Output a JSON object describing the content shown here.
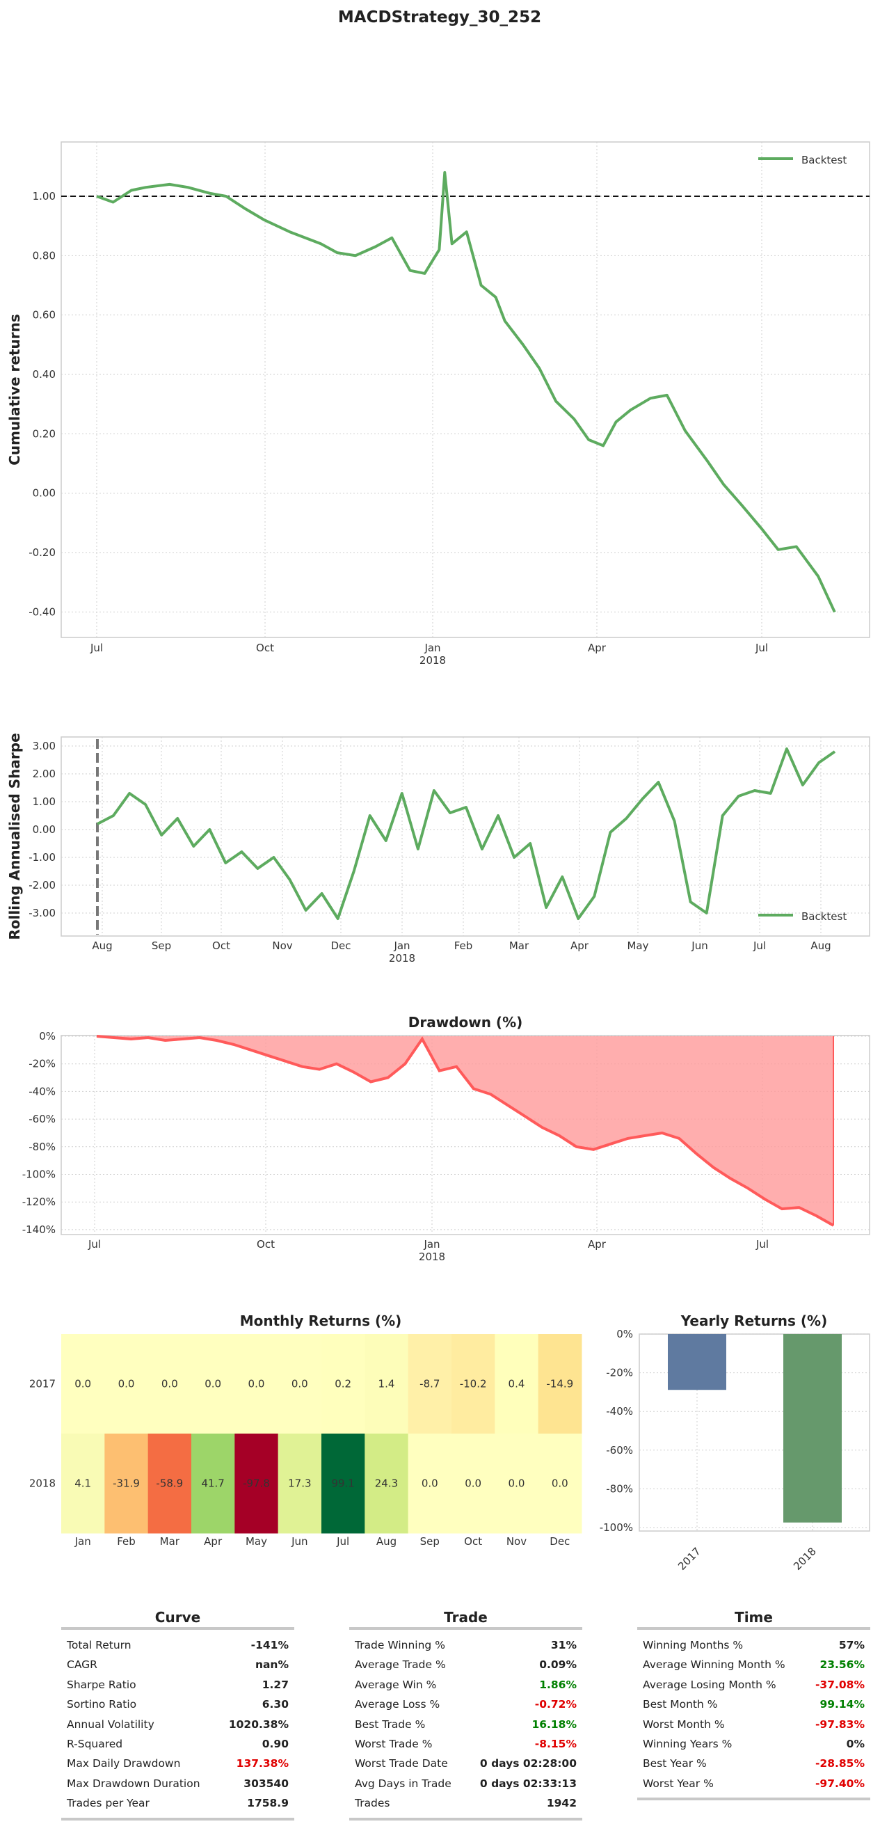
{
  "title": "MACDStrategy_30_252",
  "colors": {
    "line": "#5dab5f",
    "drawdown_fill": "#ff9a9a",
    "drawdown_line": "#ff5a5a",
    "bar2017": "#5f7aa0",
    "bar2018": "#66996c"
  },
  "chart_data": [
    {
      "type": "line",
      "name": "cumulative_returns",
      "ylabel": "Cumulative returns",
      "yticks": [
        "1.00",
        "0.80",
        "0.60",
        "0.40",
        "0.20",
        "0.00",
        "-0.20",
        "-0.40"
      ],
      "xticks": [
        "Jul",
        "Oct",
        "Jan",
        "Apr",
        "Jul"
      ],
      "xsub": "2018",
      "ylim": [
        -0.49,
        1.18
      ],
      "hline": 1.0,
      "legend": "Backtest",
      "series": [
        {
          "name": "Backtest",
          "x": [
            "2017-07-01",
            "2017-07-10",
            "2017-07-20",
            "2017-07-28",
            "2017-08-10",
            "2017-08-20",
            "2017-09-01",
            "2017-09-10",
            "2017-09-20",
            "2017-10-01",
            "2017-10-15",
            "2017-11-01",
            "2017-11-10",
            "2017-11-20",
            "2017-12-01",
            "2017-12-10",
            "2017-12-20",
            "2017-12-28",
            "2018-01-05",
            "2018-01-08",
            "2018-01-12",
            "2018-01-20",
            "2018-01-28",
            "2018-02-05",
            "2018-02-10",
            "2018-02-20",
            "2018-03-01",
            "2018-03-10",
            "2018-03-20",
            "2018-03-28",
            "2018-04-05",
            "2018-04-12",
            "2018-04-20",
            "2018-05-01",
            "2018-05-10",
            "2018-05-20",
            "2018-06-01",
            "2018-06-10",
            "2018-06-20",
            "2018-07-01",
            "2018-07-10",
            "2018-07-20",
            "2018-08-01",
            "2018-08-10"
          ],
          "values": [
            1.0,
            0.98,
            1.02,
            1.03,
            1.04,
            1.03,
            1.01,
            1.0,
            0.96,
            0.92,
            0.88,
            0.84,
            0.81,
            0.8,
            0.83,
            0.86,
            0.75,
            0.74,
            0.82,
            1.08,
            0.84,
            0.88,
            0.7,
            0.66,
            0.58,
            0.5,
            0.42,
            0.31,
            0.25,
            0.18,
            0.16,
            0.24,
            0.28,
            0.32,
            0.33,
            0.21,
            0.11,
            0.03,
            -0.04,
            -0.12,
            -0.19,
            -0.18,
            -0.28,
            -0.4
          ]
        }
      ]
    },
    {
      "type": "line",
      "name": "rolling_sharpe",
      "ylabel": "Rolling Annualised Sharpe",
      "yticks": [
        "3.00",
        "2.00",
        "1.00",
        "0.00",
        "-1.00",
        "-2.00",
        "-3.00"
      ],
      "xticks": [
        "Aug",
        "Sep",
        "Oct",
        "Nov",
        "Dec",
        "Jan",
        "Feb",
        "Mar",
        "Apr",
        "May",
        "Jun",
        "Jul",
        "Aug"
      ],
      "xsub": "2018",
      "ylim": [
        -3.55,
        3.25
      ],
      "legend": "Backtest",
      "series": [
        {
          "name": "Backtest",
          "values": [
            0.2,
            0.5,
            1.3,
            0.9,
            -0.2,
            0.4,
            -0.6,
            0.0,
            -1.2,
            -0.8,
            -1.4,
            -1.0,
            -1.8,
            -2.9,
            -2.3,
            -3.2,
            -1.5,
            0.5,
            -0.4,
            1.3,
            -0.7,
            1.4,
            0.6,
            0.8,
            -0.7,
            0.5,
            -1.0,
            -0.5,
            -2.8,
            -1.7,
            -3.2,
            -2.4,
            -0.1,
            0.4,
            1.1,
            1.7,
            0.3,
            -2.6,
            -3.0,
            0.5,
            1.2,
            1.4,
            1.3,
            2.9,
            1.6,
            2.4,
            2.8
          ]
        }
      ]
    },
    {
      "type": "area",
      "name": "drawdown",
      "title": "Drawdown (%)",
      "yticks": [
        "0%",
        "-20%",
        "-40%",
        "-60%",
        "-80%",
        "-100%",
        "-120%",
        "-140%"
      ],
      "xticks": [
        "Jul",
        "Oct",
        "Jan",
        "Apr",
        "Jul"
      ],
      "xsub": "2018",
      "ylim": [
        -142,
        0
      ],
      "series": [
        {
          "name": "drawdown",
          "values": [
            0,
            -1,
            -2,
            -1,
            -3,
            -2,
            -1,
            -3,
            -6,
            -10,
            -14,
            -18,
            -22,
            -24,
            -20,
            -26,
            -33,
            -30,
            -20,
            -2,
            -25,
            -22,
            -38,
            -42,
            -50,
            -58,
            -66,
            -72,
            -80,
            -82,
            -78,
            -74,
            -72,
            -70,
            -74,
            -85,
            -95,
            -103,
            -110,
            -118,
            -125,
            -124,
            -130,
            -137
          ]
        }
      ]
    },
    {
      "type": "heatmap",
      "name": "monthly_returns",
      "title": "Monthly Returns (%)",
      "rows": [
        "2017",
        "2018"
      ],
      "columns": [
        "Jan",
        "Feb",
        "Mar",
        "Apr",
        "May",
        "Jun",
        "Jul",
        "Aug",
        "Sep",
        "Oct",
        "Nov",
        "Dec"
      ],
      "values": [
        [
          "0.0",
          "0.0",
          "0.0",
          "0.0",
          "0.0",
          "0.0",
          "0.2",
          "1.4",
          "-8.7",
          "-10.2",
          "0.4",
          "-14.9"
        ],
        [
          "4.1",
          "-31.9",
          "-58.9",
          "41.7",
          "-97.8",
          "17.3",
          "99.1",
          "24.3",
          "0.0",
          "0.0",
          "0.0",
          "0.0"
        ]
      ],
      "cell_colors": [
        [
          "#ffffbf",
          "#ffffbf",
          "#ffffbf",
          "#ffffbf",
          "#ffffbf",
          "#ffffbf",
          "#ffffbd",
          "#fdfdb9",
          "#fff0a8",
          "#ffeca0",
          "#ffffbb",
          "#fee491"
        ],
        [
          "#f9fbb5",
          "#fdbf71",
          "#f46d43",
          "#9dd569",
          "#a50026",
          "#e0f295",
          "#006837",
          "#d3ec86",
          "#ffffbf",
          "#ffffbf",
          "#ffffbf",
          "#ffffbf"
        ]
      ],
      "text_colors": [
        [
          "#222",
          "#222",
          "#222",
          "#222",
          "#222",
          "#222",
          "#222",
          "#222",
          "#222",
          "#222",
          "#222",
          "#222"
        ],
        [
          "#222",
          "#222",
          "#fff",
          "#222",
          "#fff",
          "#222",
          "#fff",
          "#222",
          "#222",
          "#222",
          "#222",
          "#222"
        ]
      ]
    },
    {
      "type": "bar",
      "name": "yearly_returns",
      "title": "Yearly Returns (%)",
      "categories": [
        "2017",
        "2018"
      ],
      "values": [
        -28.85,
        -97.4
      ],
      "yticks": [
        "0%",
        "-20%",
        "-40%",
        "-60%",
        "-80%",
        "-100%"
      ],
      "ylim": [
        -101,
        0
      ]
    }
  ],
  "stats": {
    "curve": {
      "title": "Curve",
      "rows": [
        {
          "label": "Total Return",
          "value": "-141%",
          "tone": ""
        },
        {
          "label": "CAGR",
          "value": "nan%",
          "tone": ""
        },
        {
          "label": "Sharpe Ratio",
          "value": "1.27",
          "tone": ""
        },
        {
          "label": "Sortino Ratio",
          "value": "6.30",
          "tone": ""
        },
        {
          "label": "Annual Volatility",
          "value": "1020.38%",
          "tone": ""
        },
        {
          "label": "R-Squared",
          "value": "0.90",
          "tone": ""
        },
        {
          "label": "Max Daily Drawdown",
          "value": "137.38%",
          "tone": "neg"
        },
        {
          "label": "Max Drawdown Duration",
          "value": "303540",
          "tone": ""
        },
        {
          "label": "Trades per Year",
          "value": "1758.9",
          "tone": ""
        }
      ]
    },
    "trade": {
      "title": "Trade",
      "rows": [
        {
          "label": "Trade Winning %",
          "value": "31%",
          "tone": ""
        },
        {
          "label": "Average Trade %",
          "value": "0.09%",
          "tone": ""
        },
        {
          "label": "Average Win %",
          "value": "1.86%",
          "tone": "pos"
        },
        {
          "label": "Average Loss %",
          "value": "-0.72%",
          "tone": "neg"
        },
        {
          "label": "Best Trade %",
          "value": "16.18%",
          "tone": "pos"
        },
        {
          "label": "Worst Trade %",
          "value": "-8.15%",
          "tone": "neg"
        },
        {
          "label": "Worst Trade Date",
          "value": "0 days 02:28:00",
          "tone": ""
        },
        {
          "label": "Avg Days in Trade",
          "value": "0 days 02:33:13",
          "tone": ""
        },
        {
          "label": "Trades",
          "value": "1942",
          "tone": ""
        }
      ]
    },
    "time": {
      "title": "Time",
      "rows": [
        {
          "label": "Winning Months %",
          "value": "57%",
          "tone": ""
        },
        {
          "label": "Average Winning Month %",
          "value": "23.56%",
          "tone": "pos"
        },
        {
          "label": "Average Losing Month %",
          "value": "-37.08%",
          "tone": "neg"
        },
        {
          "label": "Best Month %",
          "value": "99.14%",
          "tone": "pos"
        },
        {
          "label": "Worst Month %",
          "value": "-97.83%",
          "tone": "neg"
        },
        {
          "label": "Winning Years %",
          "value": "0%",
          "tone": ""
        },
        {
          "label": "Best Year %",
          "value": "-28.85%",
          "tone": "neg"
        },
        {
          "label": "Worst Year %",
          "value": "-97.40%",
          "tone": "neg"
        }
      ]
    }
  }
}
